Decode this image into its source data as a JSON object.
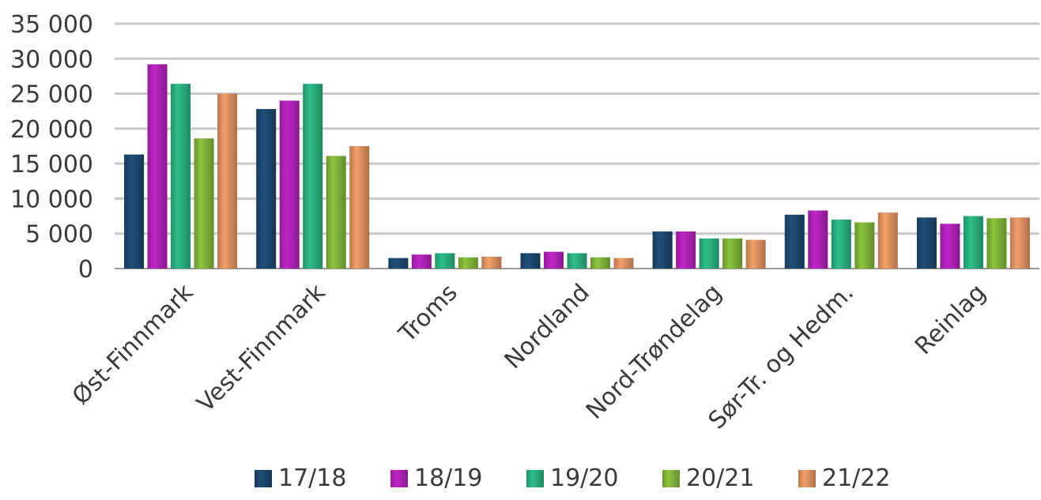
{
  "chart_data": {
    "type": "bar",
    "title": "",
    "xlabel": "",
    "ylabel": "",
    "ylim": [
      0,
      35000
    ],
    "yticks": [
      0,
      5000,
      10000,
      15000,
      20000,
      25000,
      30000,
      35000
    ],
    "ytick_labels": [
      "0",
      "5 000",
      "10 000",
      "15 000",
      "20 000",
      "25 000",
      "30 000",
      "35 000"
    ],
    "grid": true,
    "legend_position": "bottom",
    "categories": [
      "Øst-Finnmark",
      "Vest-Finnmark",
      "Troms",
      "Nordland",
      "Nord-Trøndelag",
      "Sør-Tr. og Hedm.",
      "Reinlag"
    ],
    "series": [
      {
        "name": "17/18",
        "color": "#1f4e79",
        "values": [
          16300,
          22800,
          1500,
          2200,
          5300,
          7700,
          7300
        ]
      },
      {
        "name": "18/19",
        "color": "#c026c8",
        "values": [
          29200,
          24000,
          2000,
          2400,
          5300,
          8300,
          6400
        ]
      },
      {
        "name": "19/20",
        "color": "#2ec08a",
        "values": [
          26400,
          26400,
          2200,
          2200,
          4300,
          7000,
          7500
        ]
      },
      {
        "name": "20/21",
        "color": "#8cc63f",
        "values": [
          18600,
          16100,
          1600,
          1600,
          4300,
          6600,
          7200
        ]
      },
      {
        "name": "21/22",
        "color": "#f4a06a",
        "values": [
          25000,
          17500,
          1700,
          1500,
          4100,
          8000,
          7300
        ]
      }
    ]
  }
}
